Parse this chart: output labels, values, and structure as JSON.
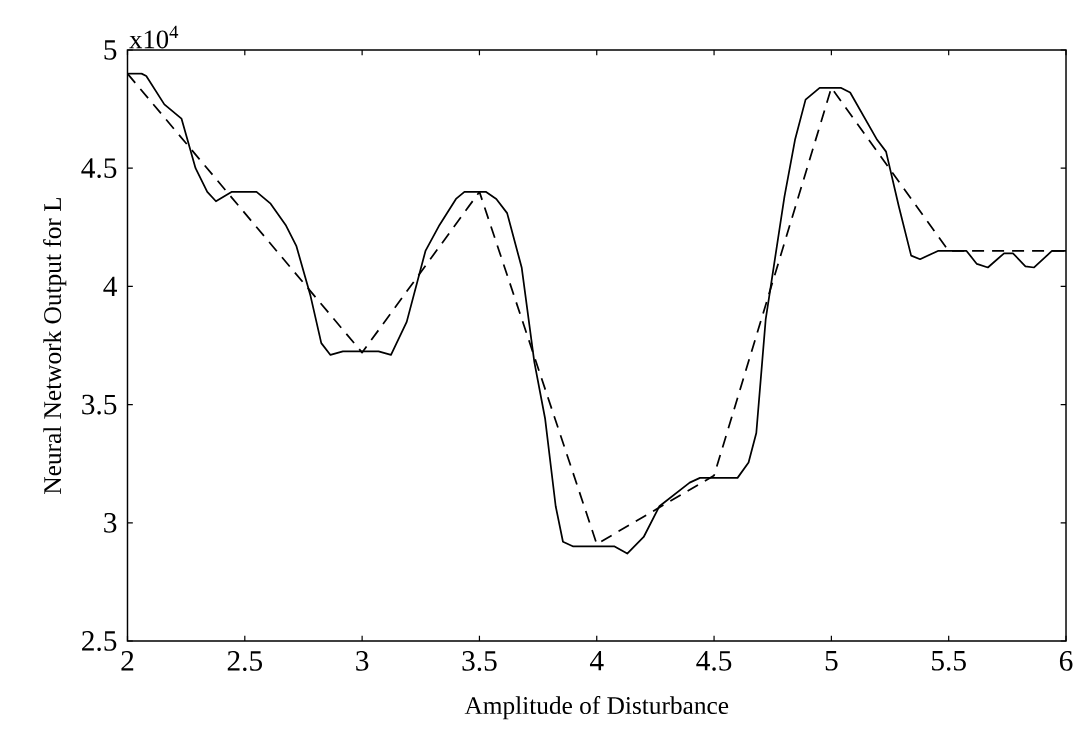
{
  "chart_data": {
    "type": "line",
    "xlabel": "Amplitude of Disturbance",
    "ylabel": "Neural Network Output for L",
    "annotations": [
      "x10$^{4}$"
    ],
    "xlim": [
      2,
      6
    ],
    "ylim": [
      2.5,
      5
    ],
    "xticks": [
      2,
      2.5,
      3,
      3.5,
      4,
      4.5,
      5,
      5.5,
      6
    ],
    "yticks": [
      2.5,
      3,
      3.5,
      4,
      4.5,
      5
    ],
    "series": [
      {
        "color": "#000000",
        "line_style": "solid",
        "x": [
          2.0,
          2.06,
          2.08,
          2.157,
          2.23,
          2.29,
          2.34,
          2.377,
          2.445,
          2.55,
          2.61,
          2.674,
          2.72,
          2.78,
          2.826,
          2.865,
          2.918,
          3.07,
          3.123,
          3.19,
          3.27,
          3.33,
          3.4,
          3.436,
          3.527,
          3.572,
          3.618,
          3.68,
          3.734,
          3.78,
          3.825,
          3.856,
          3.9,
          4.076,
          4.13,
          4.2,
          4.267,
          4.396,
          4.44,
          4.6,
          4.647,
          4.68,
          4.72,
          4.74,
          4.8,
          4.845,
          4.89,
          4.95,
          5.04,
          5.08,
          5.195,
          5.233,
          5.287,
          5.34,
          5.378,
          5.454,
          5.576,
          5.62,
          5.667,
          5.736,
          5.774,
          5.827,
          5.864,
          5.94,
          6.0
        ],
        "values": [
          4.9,
          4.9,
          4.89,
          4.77,
          4.71,
          4.5,
          4.4,
          4.36,
          4.4,
          4.4,
          4.35,
          4.26,
          4.17,
          3.96,
          3.76,
          3.71,
          3.725,
          3.725,
          3.71,
          3.85,
          4.15,
          4.26,
          4.37,
          4.4,
          4.4,
          4.37,
          4.31,
          4.08,
          3.68,
          3.44,
          3.07,
          2.92,
          2.9,
          2.9,
          2.87,
          2.94,
          3.07,
          3.17,
          3.19,
          3.19,
          3.255,
          3.38,
          3.86,
          3.99,
          4.38,
          4.62,
          4.79,
          4.84,
          4.84,
          4.82,
          4.62,
          4.57,
          4.34,
          4.13,
          4.115,
          4.15,
          4.15,
          4.095,
          4.08,
          4.14,
          4.14,
          4.085,
          4.08,
          4.15,
          4.15
        ]
      },
      {
        "color": "#000000",
        "line_style": "dashed",
        "x": [
          2.0,
          3.0,
          3.5,
          4.0,
          4.5,
          5.0,
          5.5,
          6.0
        ],
        "values": [
          4.9,
          3.72,
          4.4,
          2.91,
          3.2,
          4.84,
          4.15,
          4.15
        ]
      }
    ]
  }
}
